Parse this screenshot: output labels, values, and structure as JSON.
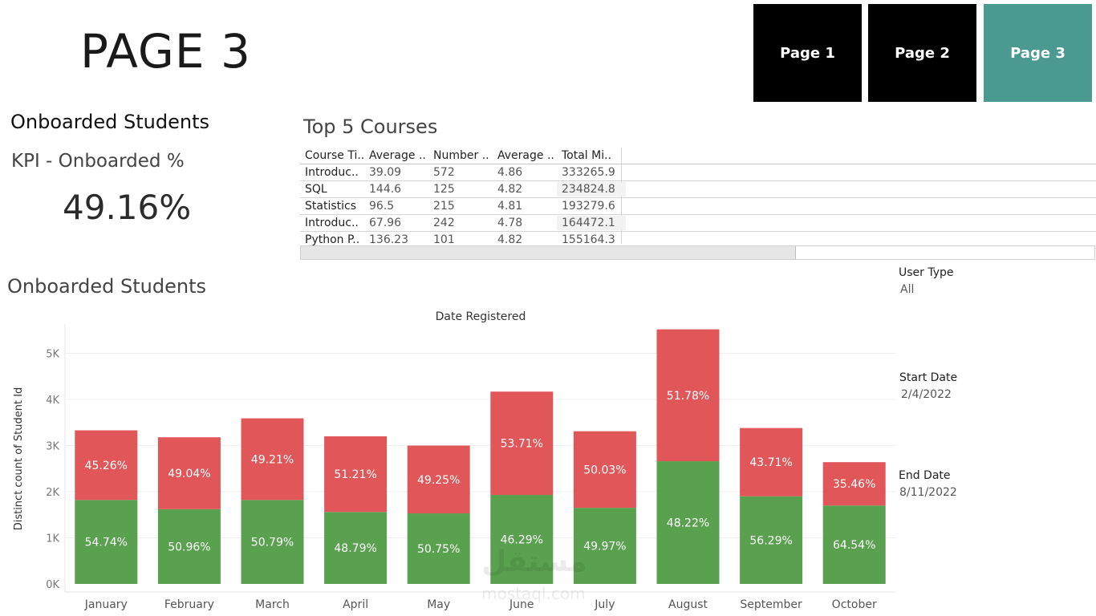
{
  "page_title": "PAGE 3",
  "nav": {
    "buttons": [
      {
        "label": "Page 1"
      },
      {
        "label": "Page  2"
      },
      {
        "label": "Page 3"
      }
    ]
  },
  "kpi": {
    "heading": "Onboarded Students",
    "label": "KPI - Onboarded %",
    "value": "49.16%"
  },
  "top5": {
    "title": "Top 5 Courses",
    "columns": [
      "Course Ti..",
      "Average ..",
      "Number ..",
      "Average ..",
      "Total Mi.."
    ],
    "rows": [
      [
        "Introduc..",
        "39.09",
        "572",
        "4.86",
        "333265.9"
      ],
      [
        "SQL",
        "144.6",
        "125",
        "4.82",
        "234824.8"
      ],
      [
        "Statistics",
        "96.5",
        "215",
        "4.81",
        "193279.6"
      ],
      [
        "Introduc..",
        "67.96",
        "242",
        "4.78",
        "164472.1"
      ],
      [
        "Python P..",
        "136.23",
        "101",
        "4.82",
        "155164.3"
      ]
    ]
  },
  "filters": {
    "user_type_label": "User Type",
    "user_type_value": "All",
    "start_date_label": "Start Date",
    "start_date_value": "2/4/2022",
    "end_date_label": "End Date",
    "end_date_value": "8/11/2022"
  },
  "chart_heading": "Onboarded Students",
  "watermark": {
    "text": "مستقل",
    "sub": "mostaql.com"
  },
  "chart_data": {
    "type": "bar",
    "stacked": true,
    "title": "Date Registered",
    "xlabel": "",
    "ylabel": "Distinct count of Student Id",
    "ylim": [
      0,
      5600
    ],
    "yticks": [
      {
        "value": 0,
        "label": "0K"
      },
      {
        "value": 1000,
        "label": "1K"
      },
      {
        "value": 2000,
        "label": "2K"
      },
      {
        "value": 3000,
        "label": "3K"
      },
      {
        "value": 4000,
        "label": "4K"
      },
      {
        "value": 5000,
        "label": "5K"
      }
    ],
    "grid": true,
    "categories": [
      "January",
      "February",
      "March",
      "April",
      "May",
      "June",
      "July",
      "August",
      "September",
      "October"
    ],
    "series": [
      {
        "color": "#59a14f",
        "values": [
          1820,
          1620,
          1820,
          1560,
          1530,
          1930,
          1650,
          2660,
          1900,
          1700
        ],
        "labels": [
          "54.74%",
          "50.96%",
          "50.79%",
          "48.79%",
          "50.75%",
          "46.29%",
          "49.97%",
          "48.22%",
          "56.29%",
          "64.54%"
        ]
      },
      {
        "color": "#e15759",
        "values": [
          1510,
          1560,
          1770,
          1640,
          1470,
          2240,
          1660,
          2860,
          1480,
          940
        ],
        "labels": [
          "45.26%",
          "49.04%",
          "49.21%",
          "51.21%",
          "49.25%",
          "53.71%",
          "50.03%",
          "51.78%",
          "43.71%",
          "35.46%"
        ]
      }
    ]
  }
}
